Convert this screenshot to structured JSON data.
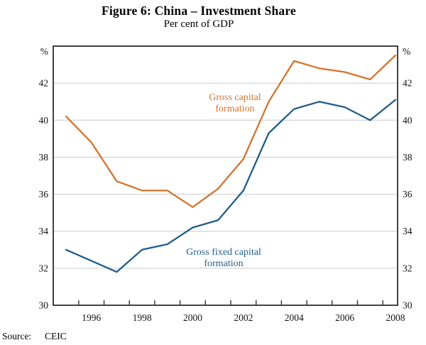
{
  "chart_data": {
    "type": "line",
    "title": "Figure 6: China – Investment Share",
    "subtitle": "Per cent of GDP",
    "x": [
      1995,
      1996,
      1997,
      1998,
      1999,
      2000,
      2001,
      2002,
      2003,
      2004,
      2005,
      2006,
      2007,
      2008
    ],
    "series": [
      {
        "name": "Gross capital formation",
        "color": "#D4732C",
        "values": [
          40.2,
          38.8,
          36.7,
          36.2,
          36.2,
          35.3,
          36.3,
          37.9,
          41.0,
          43.2,
          42.8,
          42.6,
          42.2,
          43.5
        ]
      },
      {
        "name": "Gross fixed capital formation",
        "color": "#1F5D8A",
        "values": [
          33.0,
          32.4,
          31.8,
          33.0,
          33.3,
          34.2,
          34.6,
          36.2,
          39.3,
          40.6,
          41.0,
          40.7,
          40.0,
          41.1
        ]
      }
    ],
    "ylim": [
      30,
      44
    ],
    "yticks": [
      30,
      32,
      34,
      36,
      38,
      40,
      42
    ],
    "y_unit": "%",
    "xtick_labels": [
      1996,
      1998,
      2000,
      2002,
      2004,
      2006,
      2008
    ],
    "grid": "horizontal",
    "legend_position": "inline-labels",
    "axis_color": "#2e2e2e",
    "grid_color": "#c9c9c9"
  },
  "footer": {
    "source_label": "Source:",
    "source_value": "CEIC"
  }
}
